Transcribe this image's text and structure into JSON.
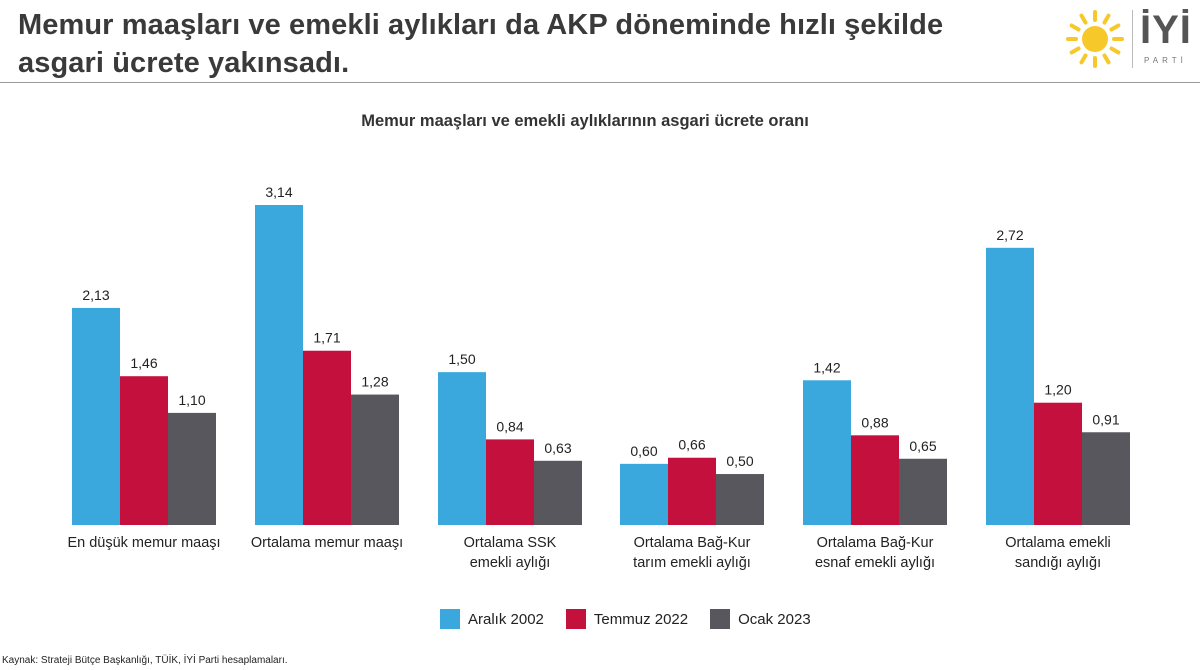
{
  "header": {
    "title_line1": "Memur maaşları ve emekli aylıkları da AKP döneminde hızlı şekilde",
    "title_line2": "asgari ücrete yakınsadı.",
    "logo_word": "İYİ",
    "logo_sub": "PARTİ"
  },
  "colors": {
    "series": [
      "#3aa8dc",
      "#c3103d",
      "#57575d"
    ],
    "logo_sun": "#f7c82a"
  },
  "chart_data": {
    "type": "bar",
    "title": "Memur maaşları ve emekli aylıklarının asgari ücrete oranı",
    "categories": [
      [
        "En düşük memur maaşı"
      ],
      [
        "Ortalama memur maaşı"
      ],
      [
        "Ortalama SSK",
        "emekli aylığı"
      ],
      [
        "Ortalama Bağ-Kur",
        "tarım emekli aylığı"
      ],
      [
        "Ortalama Bağ-Kur",
        "esnaf emekli aylığı"
      ],
      [
        "Ortalama emekli",
        "sandığı aylığı"
      ]
    ],
    "series": [
      {
        "name": "Aralık 2002",
        "values": [
          2.13,
          3.14,
          1.5,
          0.6,
          1.42,
          2.72
        ],
        "labels": [
          "2,13",
          "3,14",
          "1,50",
          "0,60",
          "1,42",
          "2,72"
        ]
      },
      {
        "name": "Temmuz 2022",
        "values": [
          1.46,
          1.71,
          0.84,
          0.66,
          0.88,
          1.2
        ],
        "labels": [
          "1,46",
          "1,71",
          "0,84",
          "0,66",
          "0,88",
          "1,20"
        ]
      },
      {
        "name": "Ocak 2023",
        "values": [
          1.1,
          1.28,
          0.63,
          0.5,
          0.65,
          0.91
        ],
        "labels": [
          "1,10",
          "1,28",
          "0,63",
          "0,50",
          "0,65",
          "0,91"
        ]
      }
    ],
    "ylim": [
      0,
      3.14
    ],
    "grid": false,
    "legend": "bottom"
  },
  "source": "Kaynak: Strateji Bütçe Başkanlığı, TÜİK, İYİ Parti hesaplamaları."
}
